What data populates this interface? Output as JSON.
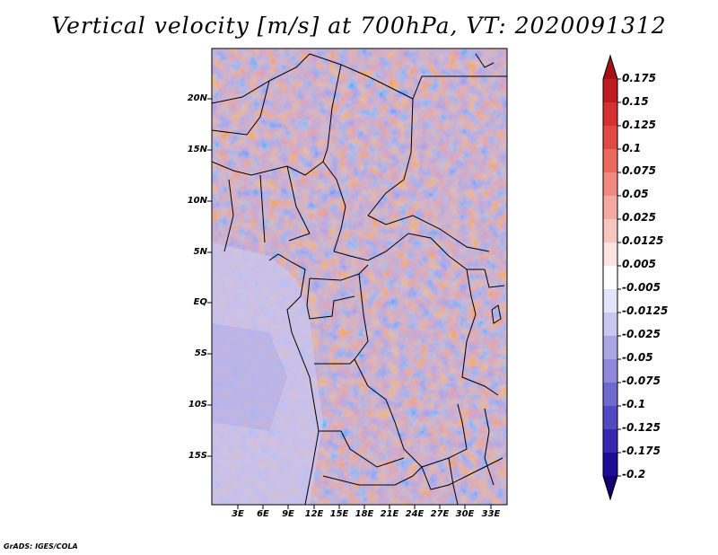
{
  "title": "Vertical velocity [m/s] at 700hPa, VT: 2020091312",
  "credit": "GrADS: IGES/COLA",
  "map": {
    "lat_ticks": [
      "20N",
      "15N",
      "10N",
      "5N",
      "EQ",
      "5S",
      "10S",
      "15S"
    ],
    "lon_ticks": [
      "3E",
      "6E",
      "9E",
      "12E",
      "15E",
      "18E",
      "21E",
      "24E",
      "27E",
      "30E",
      "33E"
    ]
  },
  "colorbar": {
    "levels": [
      "0.175",
      "0.15",
      "0.125",
      "0.1",
      "0.075",
      "0.05",
      "0.025",
      "0.0125",
      "0.005",
      "-0.005",
      "-0.0125",
      "-0.025",
      "-0.05",
      "-0.075",
      "-0.1",
      "-0.125",
      "-0.175",
      "-0.2"
    ],
    "colors": [
      "#a50f15",
      "#bf1c22",
      "#d3302f",
      "#e04a42",
      "#ea6a5e",
      "#f1897e",
      "#f5a89f",
      "#f8c6c0",
      "#fbe3e0",
      "#ffffff",
      "#e4e3f7",
      "#c9c6ef",
      "#aba7e6",
      "#8d88dc",
      "#6e69cf",
      "#5049c2",
      "#3529b0",
      "#1c0d94",
      "#140070"
    ]
  }
}
